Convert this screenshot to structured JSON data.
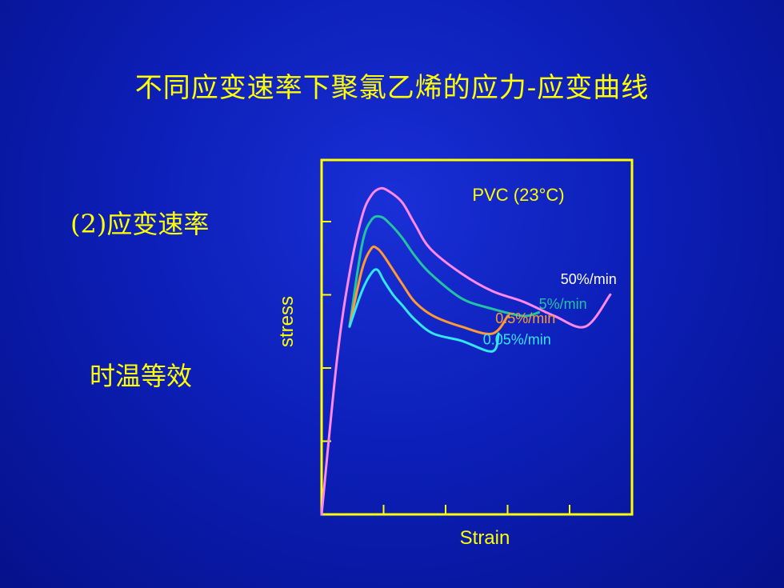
{
  "slide": {
    "title": "不同应变速率下聚氯乙烯的应力-应变曲线",
    "left_labels": [
      "(2)应变速率",
      "时温等效"
    ]
  },
  "colors": {
    "background": "#0c1fb8",
    "text": "#ffff00",
    "frame": "#ffff00"
  },
  "chart_data": {
    "type": "line",
    "title": "PVC (23°C)",
    "xlabel": "Strain",
    "ylabel": "stress",
    "xlim": [
      0,
      10
    ],
    "ylim": [
      0,
      10
    ],
    "x_ticks": 5,
    "y_ticks": 4,
    "grid": false,
    "series": [
      {
        "name": "50%/min",
        "color": "#ff88ee",
        "x": [
          0,
          0.5,
          0.9,
          1.3,
          1.6,
          1.9,
          2.2,
          2.6,
          3.0,
          3.5,
          4.5,
          5.5,
          6.5,
          7.5,
          8.5,
          9.3
        ],
        "y": [
          0,
          4.4,
          6.8,
          8.4,
          9.0,
          9.2,
          9.1,
          8.8,
          8.2,
          7.5,
          6.8,
          6.3,
          6.0,
          5.6,
          5.3,
          6.2
        ]
      },
      {
        "name": "5%/min",
        "color": "#22c3a0",
        "x": [
          0.9,
          1.3,
          1.6,
          1.9,
          2.2,
          2.6,
          3.0,
          3.5,
          4.5,
          5.5,
          6.5,
          7.0
        ],
        "y": [
          5.3,
          7.6,
          8.3,
          8.4,
          8.2,
          7.8,
          7.3,
          6.8,
          6.1,
          5.8,
          5.6,
          5.7
        ]
      },
      {
        "name": "0.5%/min",
        "color": "#ff9933",
        "x": [
          0.9,
          1.3,
          1.6,
          1.8,
          2.0,
          2.3,
          2.6,
          3.0,
          3.6,
          4.5,
          5.5,
          6.0
        ],
        "y": [
          5.3,
          6.9,
          7.5,
          7.5,
          7.3,
          6.9,
          6.5,
          6.0,
          5.6,
          5.3,
          5.1,
          5.6
        ]
      },
      {
        "name": "0.05%/min",
        "color": "#33e6f0",
        "x": [
          0.9,
          1.3,
          1.6,
          1.8,
          2.0,
          2.3,
          2.6,
          3.0,
          3.6,
          4.5,
          5.5,
          5.7
        ],
        "y": [
          5.3,
          6.3,
          6.8,
          6.9,
          6.6,
          6.2,
          5.9,
          5.5,
          5.1,
          4.9,
          4.6,
          5.1
        ]
      }
    ],
    "legend": [
      {
        "text": "50%/min",
        "color": "#ffffff",
        "x": 7.7,
        "y": 6.5
      },
      {
        "text": "5%/min",
        "color": "#22c3a0",
        "x": 7.0,
        "y": 5.8
      },
      {
        "text": "0.5%/min",
        "color": "#ff9933",
        "x": 5.6,
        "y": 5.4
      },
      {
        "text": "0.05%/min",
        "color": "#33e6f0",
        "x": 5.2,
        "y": 4.8
      }
    ]
  }
}
